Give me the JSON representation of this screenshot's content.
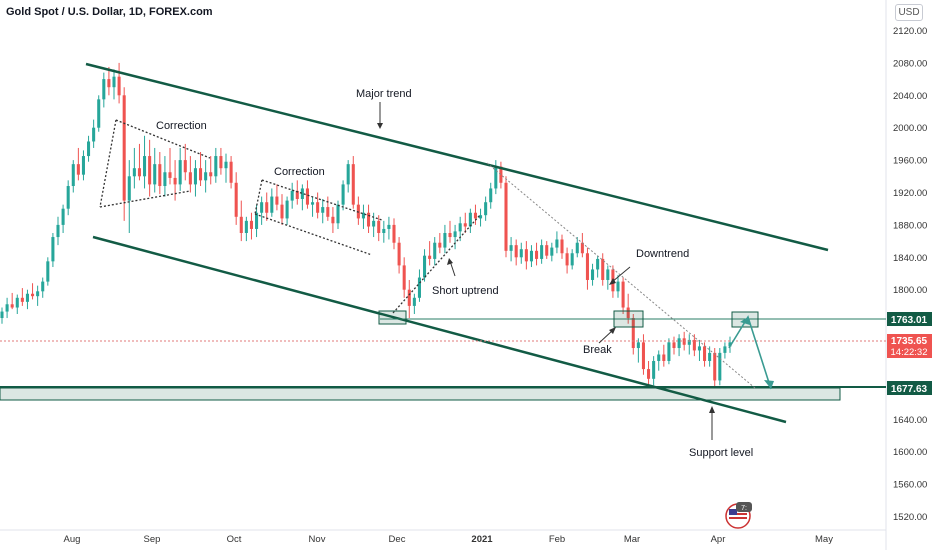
{
  "header": {
    "title": "Gold Spot / U.S. Dollar, 1D, FOREX.com",
    "currency": "USD"
  },
  "chart_data": {
    "type": "candlestick",
    "symbol": "Gold Spot / U.S. Dollar",
    "y_ticks": [
      1520,
      1560,
      1600,
      1640,
      1680,
      1720,
      1760,
      1800,
      1840,
      1880,
      1920,
      1960,
      2000,
      2040,
      2080,
      2120
    ],
    "y_tick_labels": [
      "1520.00",
      "1560.00",
      "1600.00",
      "1640.00",
      "1680.00",
      "1720.00",
      "1760.00",
      "1800.00",
      "1840.00",
      "1880.00",
      "1920.00",
      "1960.00",
      "2000.00",
      "2040.00",
      "2080.00",
      "2120.00"
    ],
    "ylim": [
      1505,
      2135
    ],
    "x_ticks": [
      "Aug",
      "Sep",
      "Oct",
      "Nov",
      "Dec",
      "2021",
      "Feb",
      "Mar",
      "Apr",
      "May"
    ],
    "price_tags": {
      "resistance": "1763.01",
      "current": "1735.65",
      "countdown": "14:22:32",
      "support": "1677.63"
    },
    "annotations": {
      "major_trend": "Major trend",
      "correction_1": "Correction",
      "correction_2": "Correction",
      "short_uptrend": "Short uptrend",
      "downtrend": "Downtrend",
      "break": "Break",
      "support_level": "Support level"
    },
    "candles": [
      [
        1765,
        1778,
        1758,
        1773
      ],
      [
        1773,
        1790,
        1765,
        1782
      ],
      [
        1782,
        1796,
        1776,
        1778
      ],
      [
        1778,
        1794,
        1770,
        1790
      ],
      [
        1790,
        1802,
        1780,
        1785
      ],
      [
        1785,
        1800,
        1776,
        1795
      ],
      [
        1795,
        1808,
        1788,
        1792
      ],
      [
        1792,
        1805,
        1780,
        1798
      ],
      [
        1798,
        1815,
        1790,
        1810
      ],
      [
        1810,
        1840,
        1805,
        1835
      ],
      [
        1835,
        1870,
        1828,
        1865
      ],
      [
        1865,
        1890,
        1855,
        1880
      ],
      [
        1880,
        1905,
        1870,
        1900
      ],
      [
        1900,
        1935,
        1892,
        1928
      ],
      [
        1928,
        1960,
        1920,
        1955
      ],
      [
        1955,
        1975,
        1935,
        1942
      ],
      [
        1942,
        1972,
        1935,
        1965
      ],
      [
        1965,
        1990,
        1958,
        1983
      ],
      [
        1983,
        2010,
        1975,
        2000
      ],
      [
        2000,
        2040,
        1995,
        2035
      ],
      [
        2035,
        2068,
        2025,
        2060
      ],
      [
        2060,
        2075,
        2040,
        2050
      ],
      [
        2050,
        2072,
        2035,
        2063
      ],
      [
        2063,
        2080,
        2030,
        2040
      ],
      [
        2040,
        2050,
        1885,
        1910
      ],
      [
        1910,
        1960,
        1870,
        1940
      ],
      [
        1940,
        1975,
        1925,
        1950
      ],
      [
        1950,
        1980,
        1935,
        1940
      ],
      [
        1940,
        1990,
        1925,
        1965
      ],
      [
        1965,
        1985,
        1915,
        1930
      ],
      [
        1930,
        1975,
        1920,
        1955
      ],
      [
        1955,
        1970,
        1918,
        1928
      ],
      [
        1928,
        1965,
        1915,
        1945
      ],
      [
        1945,
        1975,
        1930,
        1938
      ],
      [
        1938,
        1960,
        1910,
        1930
      ],
      [
        1930,
        1975,
        1922,
        1960
      ],
      [
        1960,
        1980,
        1935,
        1945
      ],
      [
        1945,
        1965,
        1920,
        1930
      ],
      [
        1930,
        1960,
        1915,
        1950
      ],
      [
        1950,
        1970,
        1928,
        1935
      ],
      [
        1935,
        1960,
        1920,
        1945
      ],
      [
        1945,
        1965,
        1930,
        1940
      ],
      [
        1940,
        1975,
        1932,
        1965
      ],
      [
        1965,
        1975,
        1942,
        1950
      ],
      [
        1950,
        1968,
        1932,
        1958
      ],
      [
        1958,
        1965,
        1925,
        1932
      ],
      [
        1932,
        1945,
        1880,
        1890
      ],
      [
        1890,
        1910,
        1860,
        1870
      ],
      [
        1870,
        1890,
        1860,
        1885
      ],
      [
        1885,
        1895,
        1862,
        1875
      ],
      [
        1875,
        1905,
        1865,
        1895
      ],
      [
        1895,
        1915,
        1880,
        1908
      ],
      [
        1908,
        1920,
        1885,
        1895
      ],
      [
        1895,
        1925,
        1890,
        1915
      ],
      [
        1915,
        1930,
        1898,
        1905
      ],
      [
        1905,
        1918,
        1880,
        1888
      ],
      [
        1888,
        1915,
        1880,
        1910
      ],
      [
        1910,
        1932,
        1900,
        1922
      ],
      [
        1922,
        1935,
        1905,
        1912
      ],
      [
        1912,
        1930,
        1898,
        1925
      ],
      [
        1925,
        1935,
        1900,
        1905
      ],
      [
        1905,
        1915,
        1890,
        1908
      ],
      [
        1908,
        1920,
        1888,
        1895
      ],
      [
        1895,
        1912,
        1882,
        1902
      ],
      [
        1902,
        1915,
        1885,
        1890
      ],
      [
        1890,
        1902,
        1870,
        1882
      ],
      [
        1882,
        1910,
        1875,
        1905
      ],
      [
        1905,
        1935,
        1898,
        1930
      ],
      [
        1930,
        1960,
        1920,
        1955
      ],
      [
        1955,
        1965,
        1900,
        1905
      ],
      [
        1905,
        1915,
        1880,
        1888
      ],
      [
        1888,
        1905,
        1875,
        1895
      ],
      [
        1895,
        1905,
        1870,
        1878
      ],
      [
        1878,
        1895,
        1865,
        1885
      ],
      [
        1885,
        1892,
        1860,
        1870
      ],
      [
        1870,
        1885,
        1858,
        1875
      ],
      [
        1875,
        1890,
        1862,
        1880
      ],
      [
        1880,
        1888,
        1850,
        1858
      ],
      [
        1858,
        1865,
        1820,
        1830
      ],
      [
        1830,
        1840,
        1790,
        1800
      ],
      [
        1800,
        1812,
        1765,
        1780
      ],
      [
        1780,
        1795,
        1770,
        1790
      ],
      [
        1790,
        1825,
        1785,
        1815
      ],
      [
        1815,
        1850,
        1810,
        1842
      ],
      [
        1842,
        1860,
        1830,
        1838
      ],
      [
        1838,
        1865,
        1830,
        1858
      ],
      [
        1858,
        1870,
        1845,
        1852
      ],
      [
        1852,
        1880,
        1845,
        1870
      ],
      [
        1870,
        1885,
        1858,
        1865
      ],
      [
        1865,
        1880,
        1850,
        1872
      ],
      [
        1872,
        1890,
        1860,
        1882
      ],
      [
        1882,
        1895,
        1870,
        1878
      ],
      [
        1878,
        1900,
        1870,
        1895
      ],
      [
        1895,
        1905,
        1880,
        1888
      ],
      [
        1888,
        1900,
        1878,
        1892
      ],
      [
        1892,
        1915,
        1885,
        1908
      ],
      [
        1908,
        1932,
        1900,
        1925
      ],
      [
        1925,
        1960,
        1918,
        1952
      ],
      [
        1952,
        1958,
        1925,
        1932
      ],
      [
        1932,
        1940,
        1840,
        1848
      ],
      [
        1848,
        1865,
        1835,
        1855
      ],
      [
        1855,
        1862,
        1830,
        1840
      ],
      [
        1840,
        1858,
        1832,
        1850
      ],
      [
        1850,
        1860,
        1825,
        1835
      ],
      [
        1835,
        1855,
        1828,
        1848
      ],
      [
        1848,
        1858,
        1830,
        1838
      ],
      [
        1838,
        1862,
        1832,
        1855
      ],
      [
        1855,
        1860,
        1838,
        1842
      ],
      [
        1842,
        1858,
        1835,
        1852
      ],
      [
        1852,
        1872,
        1845,
        1862
      ],
      [
        1862,
        1868,
        1838,
        1845
      ],
      [
        1845,
        1852,
        1820,
        1830
      ],
      [
        1830,
        1850,
        1825,
        1845
      ],
      [
        1845,
        1865,
        1840,
        1858
      ],
      [
        1858,
        1870,
        1840,
        1845
      ],
      [
        1845,
        1852,
        1800,
        1812
      ],
      [
        1812,
        1832,
        1805,
        1825
      ],
      [
        1825,
        1842,
        1815,
        1838
      ],
      [
        1838,
        1845,
        1805,
        1812
      ],
      [
        1812,
        1830,
        1800,
        1825
      ],
      [
        1825,
        1830,
        1790,
        1798
      ],
      [
        1798,
        1818,
        1790,
        1810
      ],
      [
        1810,
        1815,
        1770,
        1778
      ],
      [
        1778,
        1795,
        1758,
        1765
      ],
      [
        1765,
        1770,
        1720,
        1728
      ],
      [
        1728,
        1740,
        1710,
        1735
      ],
      [
        1735,
        1745,
        1695,
        1702
      ],
      [
        1702,
        1712,
        1680,
        1690
      ],
      [
        1690,
        1718,
        1682,
        1712
      ],
      [
        1712,
        1725,
        1700,
        1720
      ],
      [
        1720,
        1732,
        1705,
        1712
      ],
      [
        1712,
        1740,
        1708,
        1735
      ],
      [
        1735,
        1742,
        1720,
        1728
      ],
      [
        1728,
        1745,
        1718,
        1740
      ],
      [
        1740,
        1748,
        1725,
        1732
      ],
      [
        1732,
        1745,
        1720,
        1738
      ],
      [
        1738,
        1745,
        1718,
        1725
      ],
      [
        1725,
        1738,
        1712,
        1730
      ],
      [
        1730,
        1735,
        1705,
        1712
      ],
      [
        1712,
        1730,
        1705,
        1722
      ],
      [
        1722,
        1728,
        1680,
        1688
      ],
      [
        1688,
        1728,
        1682,
        1722
      ],
      [
        1722,
        1735,
        1715,
        1730
      ],
      [
        1730,
        1742,
        1722,
        1735
      ]
    ]
  }
}
